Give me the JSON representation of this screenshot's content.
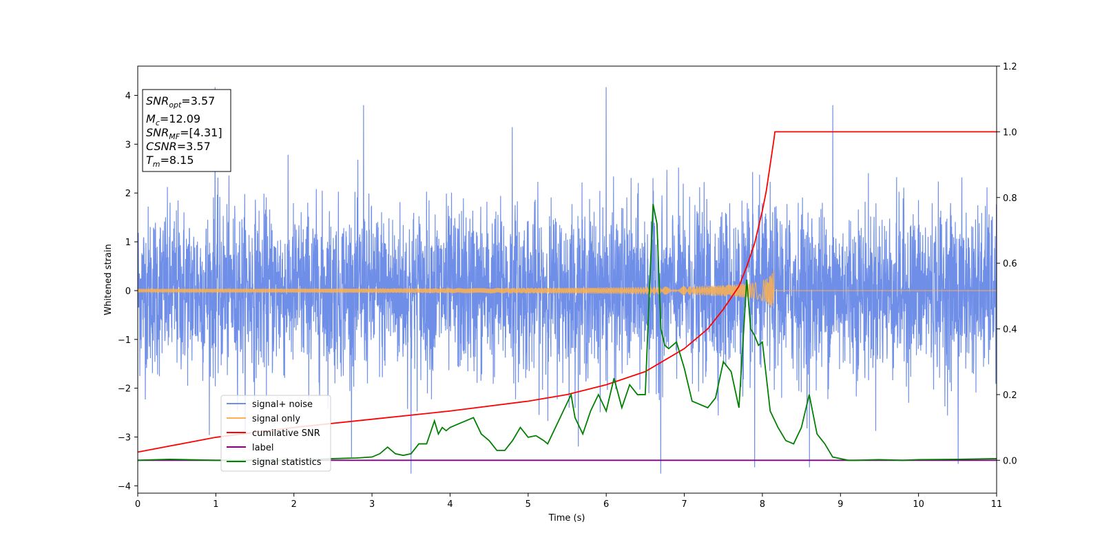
{
  "chart_data": {
    "type": "line",
    "xlabel": "Time (s)",
    "ylabel": "Whitened strain",
    "xlim": [
      0,
      11
    ],
    "ylim_left": [
      -4.15,
      4.6
    ],
    "ylim_right": [
      -0.1,
      1.2
    ],
    "x_ticks": [
      "0",
      "1",
      "2",
      "3",
      "4",
      "5",
      "6",
      "7",
      "8",
      "9",
      "10",
      "11"
    ],
    "y_left_ticks": [
      "4",
      "3",
      "2",
      "1",
      "0",
      "−1",
      "−2",
      "−3",
      "−4"
    ],
    "y_right_ticks": [
      "1.2",
      "1.0",
      "0.8",
      "0.6",
      "0.4",
      "0.2",
      "0.0"
    ],
    "info_box": {
      "snr_opt_sym": "SNR",
      "snr_opt_sub": "opt",
      "snr_opt_val": "=3.57",
      "mc_sym": "M",
      "mc_sub": "c",
      "mc_val": "=12.09",
      "snr_mf_sym": "SNR",
      "snr_mf_sub": "MF",
      "snr_mf_val": "=[4.31]",
      "csnr_sym": "CSNR",
      "csnr_val": "=3.57",
      "tm_sym": "T",
      "tm_sub": "m",
      "tm_val": "=8.15"
    },
    "series": [
      {
        "name": "signal+ noise",
        "color": "#6f8ee8",
        "axis": "left",
        "kind": "noise",
        "std": 0.85,
        "spikes_to": [
          4.17,
          3.8,
          3.35,
          -3.75,
          -3.62,
          -3.55
        ]
      },
      {
        "name": "signal only",
        "color": "#ffb14e",
        "axis": "left",
        "kind": "chirp",
        "merger_time": 8.15,
        "peak_amplitude": 0.55
      },
      {
        "name": "cumilative SNR",
        "color": "#ff0000",
        "axis": "right",
        "x": [
          0,
          1,
          2,
          3,
          4,
          5,
          5.5,
          6,
          6.5,
          7,
          7.3,
          7.5,
          7.7,
          7.8,
          7.9,
          8.0,
          8.05,
          8.1,
          8.15,
          8.16,
          11
        ],
        "y": [
          0.025,
          0.07,
          0.1,
          0.125,
          0.15,
          0.18,
          0.2,
          0.23,
          0.27,
          0.34,
          0.4,
          0.46,
          0.53,
          0.59,
          0.66,
          0.76,
          0.82,
          0.9,
          0.98,
          1.0,
          1.0
        ]
      },
      {
        "name": "label",
        "color": "#800080",
        "axis": "right",
        "x": [
          0,
          11
        ],
        "y": [
          0.0,
          0.0
        ]
      },
      {
        "name": "signal statistics",
        "color": "#008000",
        "axis": "right",
        "x": [
          0,
          0.4,
          1,
          1.5,
          2,
          2.5,
          2.8,
          3.0,
          3.1,
          3.2,
          3.3,
          3.4,
          3.5,
          3.6,
          3.7,
          3.8,
          3.85,
          3.9,
          3.95,
          4.0,
          4.1,
          4.2,
          4.3,
          4.4,
          4.5,
          4.6,
          4.7,
          4.8,
          4.9,
          5.0,
          5.1,
          5.2,
          5.25,
          5.35,
          5.45,
          5.55,
          5.6,
          5.7,
          5.8,
          5.9,
          6.0,
          6.1,
          6.2,
          6.3,
          6.4,
          6.5,
          6.55,
          6.6,
          6.65,
          6.7,
          6.75,
          6.8,
          6.9,
          7.0,
          7.1,
          7.2,
          7.3,
          7.4,
          7.5,
          7.6,
          7.7,
          7.8,
          7.85,
          7.9,
          7.95,
          8.0,
          8.1,
          8.2,
          8.3,
          8.4,
          8.5,
          8.6,
          8.7,
          8.8,
          8.9,
          9.0,
          9.1,
          9.2,
          9.5,
          9.8,
          10,
          10.5,
          11
        ],
        "y": [
          0.0,
          0.003,
          0.0,
          0.0,
          0.0,
          0.005,
          0.007,
          0.01,
          0.02,
          0.04,
          0.02,
          0.015,
          0.02,
          0.05,
          0.05,
          0.12,
          0.08,
          0.1,
          0.09,
          0.1,
          0.11,
          0.12,
          0.13,
          0.08,
          0.06,
          0.03,
          0.03,
          0.06,
          0.1,
          0.07,
          0.075,
          0.06,
          0.05,
          0.1,
          0.15,
          0.2,
          0.13,
          0.08,
          0.15,
          0.2,
          0.15,
          0.25,
          0.16,
          0.23,
          0.2,
          0.2,
          0.5,
          0.78,
          0.72,
          0.4,
          0.35,
          0.34,
          0.36,
          0.28,
          0.18,
          0.17,
          0.16,
          0.19,
          0.3,
          0.27,
          0.16,
          0.55,
          0.4,
          0.38,
          0.35,
          0.36,
          0.15,
          0.1,
          0.06,
          0.05,
          0.1,
          0.2,
          0.08,
          0.05,
          0.01,
          0.005,
          0.0,
          0.0,
          0.002,
          0.0,
          0.002,
          0.003,
          0.005
        ]
      }
    ],
    "legend": {
      "placement": "lower-left"
    },
    "grid": false
  }
}
